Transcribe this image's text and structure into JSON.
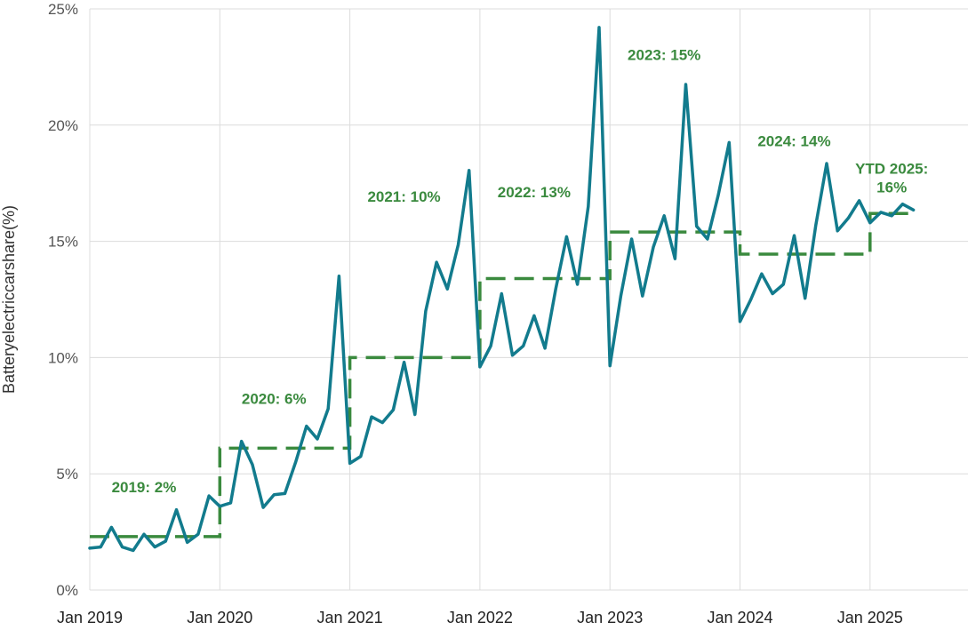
{
  "chart_data": {
    "type": "line",
    "ylabel": "Batteryelectriccarshare(%)",
    "xlabel": "",
    "ylim": [
      0,
      25
    ],
    "y_ticks": [
      {
        "value": 0,
        "label": "0%"
      },
      {
        "value": 5,
        "label": "5%"
      },
      {
        "value": 10,
        "label": "10%"
      },
      {
        "value": 15,
        "label": "15%"
      },
      {
        "value": 20,
        "label": "20%"
      },
      {
        "value": 25,
        "label": "25%"
      }
    ],
    "x_range": [
      "2019-01",
      "2025-05"
    ],
    "x_ticks": [
      {
        "month": "2019-01",
        "label": "Jan 2019"
      },
      {
        "month": "2020-01",
        "label": "Jan 2020"
      },
      {
        "month": "2021-01",
        "label": "Jan 2021"
      },
      {
        "month": "2022-01",
        "label": "Jan 2022"
      },
      {
        "month": "2023-01",
        "label": "Jan 2023"
      },
      {
        "month": "2024-01",
        "label": "Jan 2024"
      },
      {
        "month": "2025-01",
        "label": "Jan 2025"
      }
    ],
    "grid": true,
    "colors": {
      "monthly": "#127b8d",
      "annual": "#3a8a3e",
      "annotation": "#3a8a3e",
      "grid": "#dcdcdc"
    },
    "series": [
      {
        "style": "solid",
        "x": [
          "2019-01",
          "2019-02",
          "2019-03",
          "2019-04",
          "2019-05",
          "2019-06",
          "2019-07",
          "2019-08",
          "2019-09",
          "2019-10",
          "2019-11",
          "2019-12",
          "2020-01",
          "2020-02",
          "2020-03",
          "2020-04",
          "2020-05",
          "2020-06",
          "2020-07",
          "2020-08",
          "2020-09",
          "2020-10",
          "2020-11",
          "2020-12",
          "2021-01",
          "2021-02",
          "2021-03",
          "2021-04",
          "2021-05",
          "2021-06",
          "2021-07",
          "2021-08",
          "2021-09",
          "2021-10",
          "2021-11",
          "2021-12",
          "2022-01",
          "2022-02",
          "2022-03",
          "2022-04",
          "2022-05",
          "2022-06",
          "2022-07",
          "2022-08",
          "2022-09",
          "2022-10",
          "2022-11",
          "2022-12",
          "2023-01",
          "2023-02",
          "2023-03",
          "2023-04",
          "2023-05",
          "2023-06",
          "2023-07",
          "2023-08",
          "2023-09",
          "2023-10",
          "2023-11",
          "2023-12",
          "2024-01",
          "2024-02",
          "2024-03",
          "2024-04",
          "2024-05",
          "2024-06",
          "2024-07",
          "2024-08",
          "2024-09",
          "2024-10",
          "2024-11",
          "2024-12",
          "2025-01",
          "2025-02",
          "2025-03",
          "2025-04",
          "2025-05"
        ],
        "y": [
          1.8,
          1.85,
          2.7,
          1.85,
          1.7,
          2.4,
          1.85,
          2.1,
          3.45,
          2.05,
          2.4,
          4.05,
          3.6,
          3.75,
          6.4,
          5.4,
          3.55,
          4.1,
          4.15,
          5.5,
          7.05,
          6.5,
          7.8,
          13.5,
          5.45,
          5.75,
          7.45,
          7.2,
          7.75,
          9.8,
          7.55,
          12.0,
          14.1,
          12.95,
          14.85,
          18.05,
          9.6,
          10.5,
          12.75,
          10.1,
          10.5,
          11.8,
          10.4,
          12.95,
          15.2,
          13.15,
          16.5,
          24.2,
          9.65,
          12.65,
          15.1,
          12.65,
          14.75,
          16.1,
          14.25,
          21.75,
          15.65,
          15.1,
          17.0,
          19.25,
          11.55,
          12.5,
          13.6,
          12.75,
          13.15,
          15.25,
          12.55,
          15.7,
          18.35,
          15.45,
          16.0,
          16.75,
          15.8,
          16.25,
          16.1,
          16.6,
          16.35
        ]
      },
      {
        "style": "dashed",
        "x_start": [
          "2019-01",
          "2020-01",
          "2021-01",
          "2022-01",
          "2023-01",
          "2024-01",
          "2025-01"
        ],
        "x_end": [
          "2020-01",
          "2021-01",
          "2022-01",
          "2023-01",
          "2024-01",
          "2025-01",
          "2025-05"
        ],
        "y": [
          2.3,
          6.1,
          10.0,
          13.4,
          15.4,
          14.45,
          16.2
        ]
      }
    ],
    "annotations": [
      {
        "text": "2019: 2%",
        "month": "2019-06",
        "y": 4.2
      },
      {
        "text": "2020: 6%",
        "month": "2020-06",
        "y": 8.0
      },
      {
        "text": "2021: 10%",
        "month": "2021-06",
        "y": 16.7
      },
      {
        "text": "2022: 13%",
        "month": "2022-06",
        "y": 16.9
      },
      {
        "text": "2023: 15%",
        "month": "2023-06",
        "y": 22.8
      },
      {
        "text": "2024: 14%",
        "month": "2024-06",
        "y": 19.1
      },
      {
        "lines": [
          "YTD 2025:",
          "16%"
        ],
        "month": "2025-03",
        "y": 17.9
      }
    ]
  }
}
